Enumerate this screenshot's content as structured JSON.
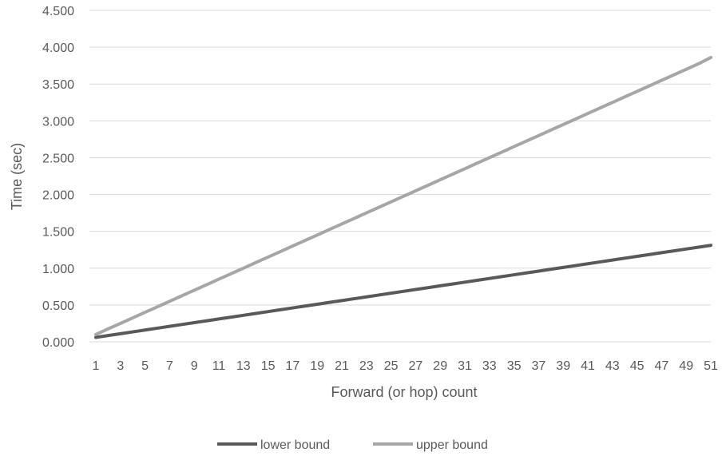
{
  "chart_data": {
    "type": "line",
    "title": "",
    "xlabel": "Forward (or hop) count",
    "ylabel": "Time (sec)",
    "ylim": [
      0,
      4.5
    ],
    "yticks": [
      "0.000",
      "0.500",
      "1.000",
      "1.500",
      "2.000",
      "2.500",
      "3.000",
      "3.500",
      "4.000",
      "4.500"
    ],
    "x": [
      1,
      2,
      3,
      4,
      5,
      6,
      7,
      8,
      9,
      10,
      11,
      12,
      13,
      14,
      15,
      16,
      17,
      18,
      19,
      20,
      21,
      22,
      23,
      24,
      25,
      26,
      27,
      28,
      29,
      30,
      31,
      32,
      33,
      34,
      35,
      36,
      37,
      38,
      39,
      40,
      41,
      42,
      43,
      44,
      45,
      46,
      47,
      48,
      49,
      50,
      51
    ],
    "xticks": [
      "1",
      "3",
      "5",
      "7",
      "9",
      "11",
      "13",
      "15",
      "17",
      "19",
      "21",
      "23",
      "25",
      "27",
      "29",
      "31",
      "33",
      "35",
      "37",
      "39",
      "41",
      "43",
      "45",
      "47",
      "49",
      "51"
    ],
    "grid": true,
    "legend_position": "bottom",
    "series": [
      {
        "name": "lower bound",
        "color": "#595959",
        "values": [
          0.06,
          0.085,
          0.11,
          0.135,
          0.16,
          0.185,
          0.21,
          0.235,
          0.26,
          0.285,
          0.31,
          0.335,
          0.36,
          0.385,
          0.41,
          0.435,
          0.46,
          0.485,
          0.51,
          0.535,
          0.56,
          0.585,
          0.61,
          0.635,
          0.66,
          0.685,
          0.71,
          0.735,
          0.76,
          0.785,
          0.81,
          0.835,
          0.86,
          0.885,
          0.91,
          0.935,
          0.96,
          0.985,
          1.01,
          1.035,
          1.06,
          1.085,
          1.11,
          1.135,
          1.16,
          1.185,
          1.21,
          1.235,
          1.26,
          1.285,
          1.31
        ]
      },
      {
        "name": "upper bound",
        "color": "#a6a6a6",
        "values": [
          0.1,
          0.175,
          0.25,
          0.325,
          0.4,
          0.475,
          0.55,
          0.625,
          0.7,
          0.775,
          0.85,
          0.925,
          1.0,
          1.075,
          1.15,
          1.225,
          1.3,
          1.375,
          1.45,
          1.525,
          1.6,
          1.675,
          1.75,
          1.825,
          1.9,
          1.975,
          2.05,
          2.125,
          2.2,
          2.275,
          2.35,
          2.425,
          2.5,
          2.575,
          2.65,
          2.725,
          2.8,
          2.875,
          2.95,
          3.025,
          3.1,
          3.175,
          3.25,
          3.325,
          3.4,
          3.475,
          3.55,
          3.625,
          3.7,
          3.775,
          3.86
        ]
      }
    ]
  },
  "colors": {
    "grid": "#d9d9d9",
    "text": "#595959"
  }
}
